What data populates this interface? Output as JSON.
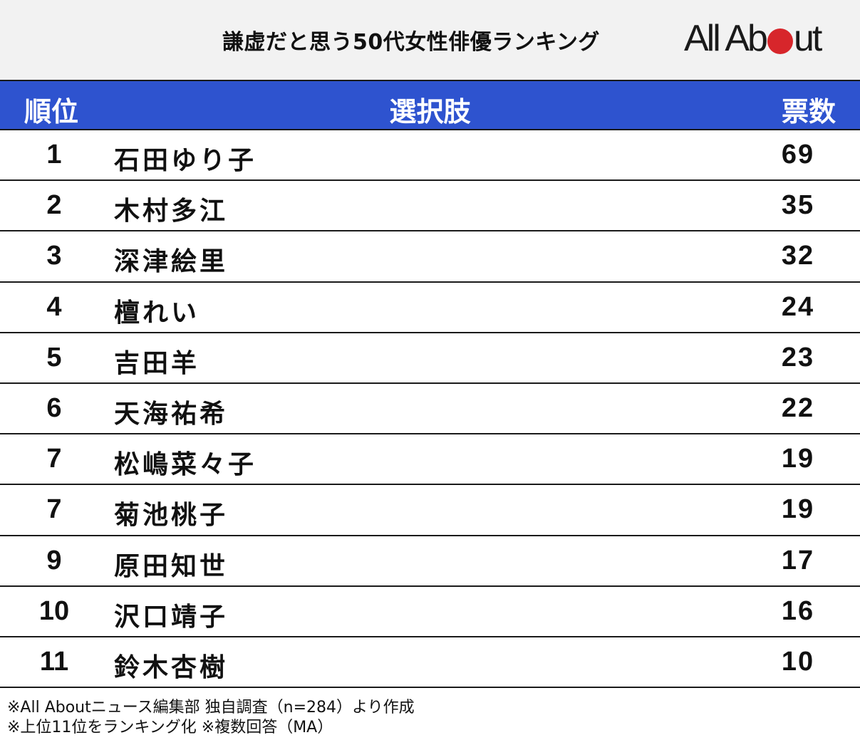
{
  "header": {
    "title": "謙虚だと思う50代女性俳優ランキング",
    "logo": {
      "prefix": "All Ab",
      "suffix": "ut",
      "dot_color": "#d7262b"
    }
  },
  "table": {
    "columns": {
      "rank": "順位",
      "choice": "選択肢",
      "votes": "票数"
    },
    "header_bg": "#2e53cf",
    "rows": [
      {
        "rank": "1",
        "name": "石田ゆり子",
        "votes": "69"
      },
      {
        "rank": "2",
        "name": "木村多江",
        "votes": "35"
      },
      {
        "rank": "3",
        "name": "深津絵里",
        "votes": "32"
      },
      {
        "rank": "4",
        "name": "檀れい",
        "votes": "24"
      },
      {
        "rank": "5",
        "name": "吉田羊",
        "votes": "23"
      },
      {
        "rank": "6",
        "name": "天海祐希",
        "votes": "22"
      },
      {
        "rank": "7",
        "name": "松嶋菜々子",
        "votes": "19"
      },
      {
        "rank": "7",
        "name": "菊池桃子",
        "votes": "19"
      },
      {
        "rank": "9",
        "name": "原田知世",
        "votes": "17"
      },
      {
        "rank": "10",
        "name": "沢口靖子",
        "votes": "16"
      },
      {
        "rank": "11",
        "name": "鈴木杏樹",
        "votes": "10"
      }
    ]
  },
  "footer": {
    "line1": "※All Aboutニュース編集部 独自調査（n=284）より作成",
    "line2": "※上位11位をランキング化 ※複数回答（MA）"
  },
  "chart_data": {
    "type": "table",
    "title": "謙虚だと思う50代女性俳優ランキング",
    "columns": [
      "順位",
      "選択肢",
      "票数"
    ],
    "categories": [
      "石田ゆり子",
      "木村多江",
      "深津絵里",
      "檀れい",
      "吉田羊",
      "天海祐希",
      "松嶋菜々子",
      "菊池桃子",
      "原田知世",
      "沢口靖子",
      "鈴木杏樹"
    ],
    "ranks": [
      1,
      2,
      3,
      4,
      5,
      6,
      7,
      7,
      9,
      10,
      11
    ],
    "values": [
      69,
      35,
      32,
      24,
      23,
      22,
      19,
      19,
      17,
      16,
      10
    ],
    "notes": [
      "※All Aboutニュース編集部 独自調査（n=284）より作成",
      "※上位11位をランキング化 ※複数回答（MA）"
    ],
    "sample_size": 284
  }
}
